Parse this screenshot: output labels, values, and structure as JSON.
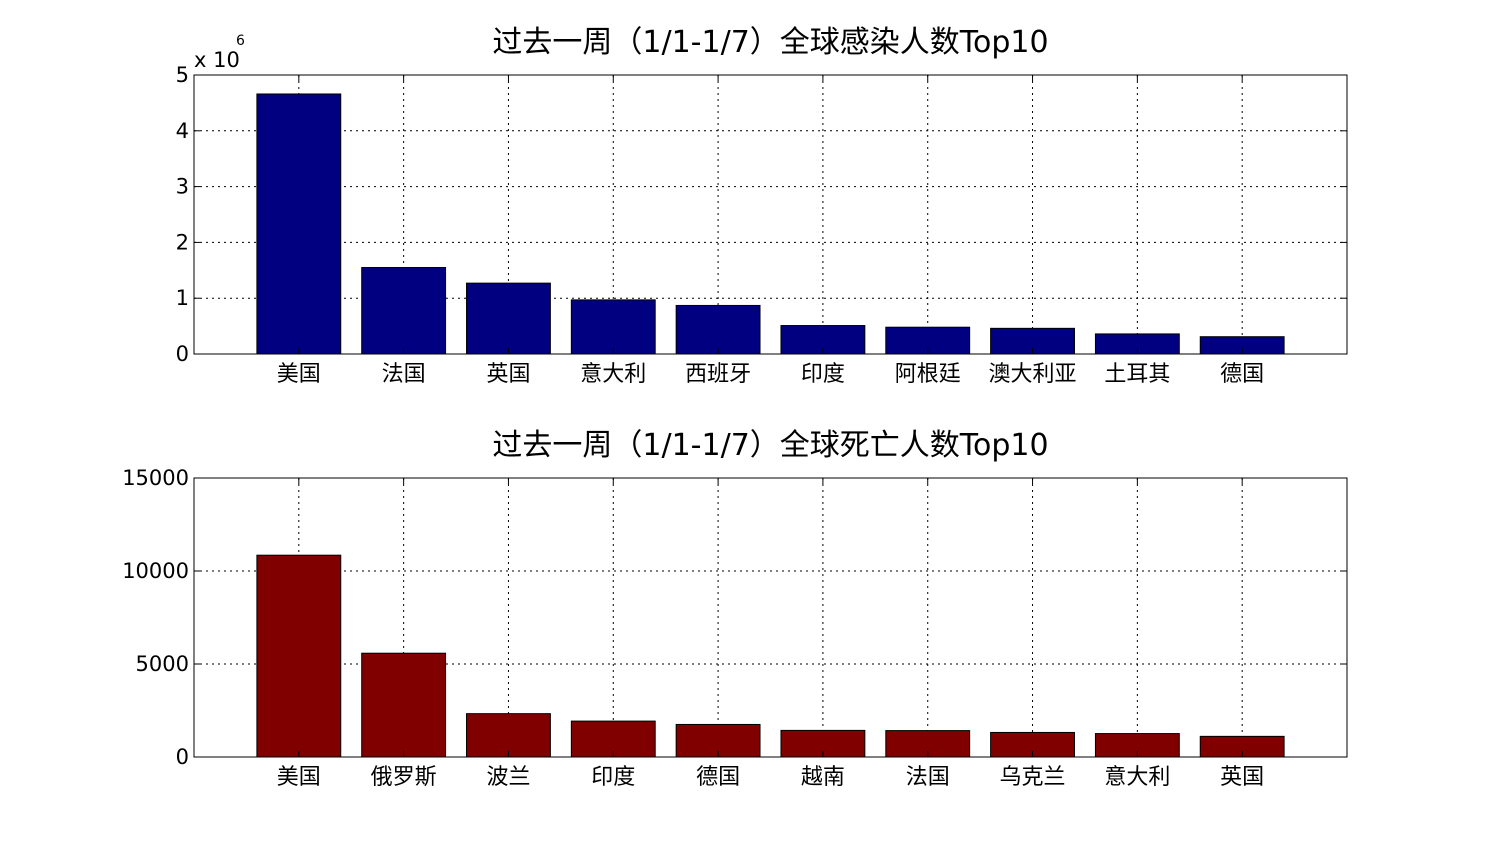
{
  "chart_data": [
    {
      "type": "bar",
      "title": "过去一周（1/1-1/7）全球感染人数Top10",
      "categories": [
        "美国",
        "法国",
        "英国",
        "意大利",
        "西班牙",
        "印度",
        "阿根廷",
        "澳大利亚",
        "土耳其",
        "德国"
      ],
      "values": [
        4660000,
        1550000,
        1270000,
        970000,
        870000,
        510000,
        480000,
        460000,
        360000,
        310000
      ],
      "ylim": [
        0,
        5000000
      ],
      "yticks": [
        0,
        1000000,
        2000000,
        3000000,
        4000000,
        5000000
      ],
      "ytick_labels": [
        "0",
        "1",
        "2",
        "3",
        "4",
        "5"
      ],
      "y_exponent_base": "x 10",
      "y_exponent_power": "6",
      "grid": true,
      "bar_color": "#000080"
    },
    {
      "type": "bar",
      "title": "过去一周（1/1-1/7）全球死亡人数Top10",
      "categories": [
        "美国",
        "俄罗斯",
        "波兰",
        "印度",
        "德国",
        "越南",
        "法国",
        "乌克兰",
        "意大利",
        "英国"
      ],
      "values": [
        10850,
        5580,
        2330,
        1930,
        1750,
        1430,
        1420,
        1320,
        1260,
        1110
      ],
      "ylim": [
        0,
        15000
      ],
      "yticks": [
        0,
        5000,
        10000,
        15000
      ],
      "ytick_labels": [
        "0",
        "5000",
        "10000",
        "15000"
      ],
      "grid": true,
      "bar_color": "#800000"
    }
  ]
}
